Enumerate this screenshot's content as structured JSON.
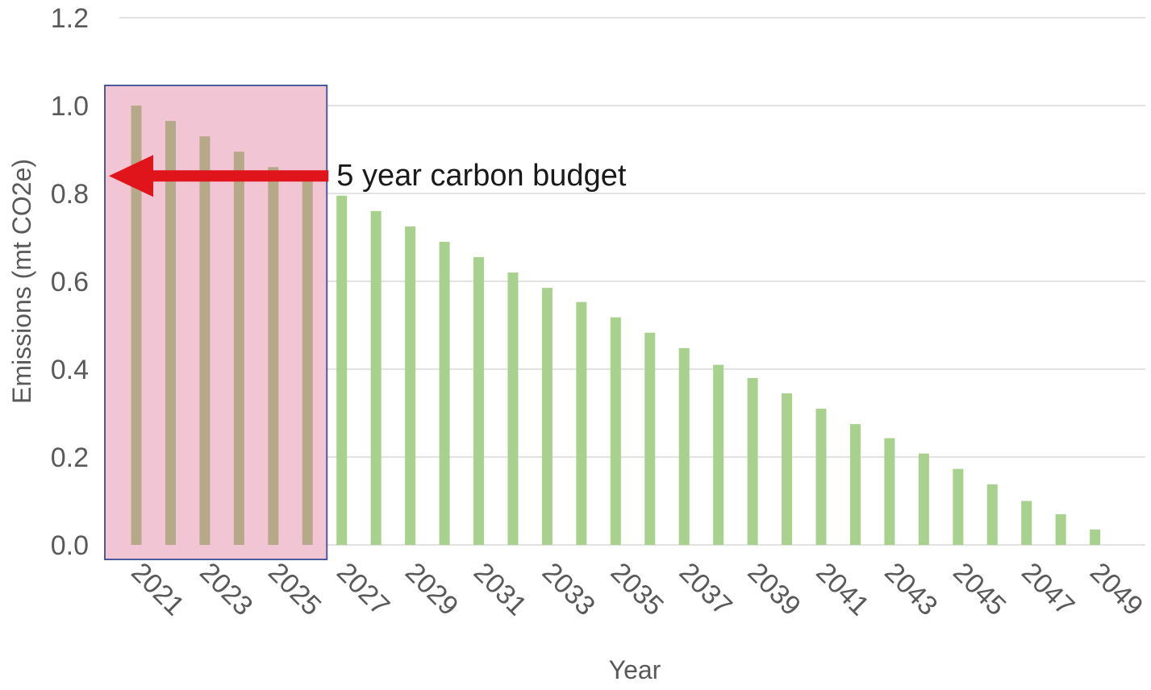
{
  "chart_data": {
    "type": "bar",
    "title": "",
    "xlabel": "Year",
    "ylabel": "Emissions (mt CO2e)",
    "ylim": [
      0,
      1.2
    ],
    "yticks": [
      "0.0",
      "0.2",
      "0.4",
      "0.6",
      "0.8",
      "1.0",
      "1.2"
    ],
    "grid": true,
    "categories": [
      "2021",
      "2022",
      "2023",
      "2024",
      "2025",
      "2026",
      "2027",
      "2028",
      "2029",
      "2030",
      "2031",
      "2032",
      "2033",
      "2034",
      "2035",
      "2036",
      "2037",
      "2038",
      "2039",
      "2040",
      "2041",
      "2042",
      "2043",
      "2044",
      "2045",
      "2046",
      "2047",
      "2048",
      "2049",
      "2050"
    ],
    "tick_labels": [
      "2021",
      "",
      "2023",
      "",
      "2025",
      "",
      "2027",
      "",
      "2029",
      "",
      "2031",
      "",
      "2033",
      "",
      "2035",
      "",
      "2037",
      "",
      "2039",
      "",
      "2041",
      "",
      "2043",
      "",
      "2045",
      "",
      "2047",
      "",
      "2049",
      ""
    ],
    "values": [
      1.0,
      0.965,
      0.93,
      0.895,
      0.86,
      0.83,
      0.795,
      0.76,
      0.725,
      0.69,
      0.655,
      0.62,
      0.585,
      0.553,
      0.518,
      0.483,
      0.448,
      0.41,
      0.38,
      0.345,
      0.31,
      0.275,
      0.243,
      0.208,
      0.173,
      0.138,
      0.1,
      0.07,
      0.035,
      0.0
    ],
    "colors": {
      "bar": "#a9d18e",
      "bar_highlighted": "#b5a98a",
      "gridline": "#d9d9d9",
      "highlight_fill": "#f2c5d5",
      "highlight_border": "#4a5a9a",
      "arrow": "#e0141b"
    },
    "highlight": {
      "categories": [
        "2021",
        "2022",
        "2023",
        "2024",
        "2025",
        "2026"
      ]
    },
    "annotations": [
      {
        "text": "5 year carbon budget",
        "arrow": "left",
        "arrow_y_value": 0.84
      }
    ]
  }
}
